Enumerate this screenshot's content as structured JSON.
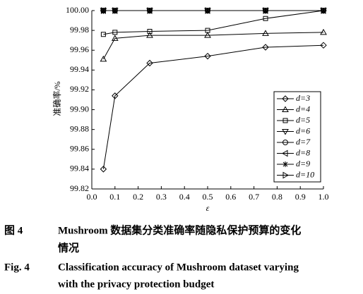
{
  "chart_data": {
    "type": "line",
    "x_label": "ε",
    "y_label": "准确率/%",
    "x": [
      0.05,
      0.1,
      0.25,
      0.5,
      0.75,
      1.0
    ],
    "series": [
      {
        "name": "d=3",
        "marker": "diamond",
        "color": "#000",
        "values": [
          99.84,
          99.914,
          99.947,
          99.954,
          99.963,
          99.965
        ]
      },
      {
        "name": "d=4",
        "marker": "triangle-up",
        "color": "#000",
        "values": [
          99.951,
          99.972,
          99.975,
          99.975,
          99.977,
          99.978
        ]
      },
      {
        "name": "d=5",
        "marker": "square",
        "color": "#000",
        "values": [
          99.976,
          99.978,
          99.979,
          99.98,
          99.992,
          100.0
        ]
      },
      {
        "name": "d=6",
        "marker": "triangle-down",
        "color": "#000",
        "values": [
          100.0,
          100.0,
          100.0,
          100.0,
          100.0,
          100.0
        ]
      },
      {
        "name": "d=7",
        "marker": "circle",
        "color": "#000",
        "values": [
          100.0,
          100.0,
          100.0,
          100.0,
          100.0,
          100.0
        ]
      },
      {
        "name": "d=8",
        "marker": "triangle-left",
        "color": "#000",
        "values": [
          100.0,
          100.0,
          100.0,
          100.0,
          100.0,
          100.0
        ]
      },
      {
        "name": "d=9",
        "marker": "asterisk",
        "color": "#000",
        "values": [
          100.0,
          100.0,
          100.0,
          100.0,
          100.0,
          100.0
        ]
      },
      {
        "name": "d=10",
        "marker": "triangle-right",
        "color": "#000",
        "values": [
          100.0,
          100.0,
          100.0,
          100.0,
          100.0,
          100.0
        ]
      }
    ],
    "xlim": [
      0,
      1
    ],
    "xticks": [
      {
        "value": 0,
        "label": "0.0"
      },
      0.1,
      0.2,
      0.3,
      0.4,
      0.5,
      0.6,
      0.7,
      0.8,
      0.9,
      {
        "value": 1,
        "label": "1.0"
      }
    ],
    "ylim": [
      99.82,
      100
    ],
    "yticks": [
      99.82,
      99.84,
      99.86,
      99.88,
      {
        "value": 99.9,
        "label": "99.90"
      },
      99.92,
      99.94,
      99.96,
      99.98,
      {
        "value": 100,
        "label": "100.00"
      }
    ],
    "legend": "right"
  },
  "caption": {
    "label_cn": "图 4",
    "lines_cn": [
      "Mushroom 数据集分类准确率随隐私保护预算的变化",
      "情况"
    ],
    "label_en": "Fig. 4",
    "lines_en": [
      "Classification accuracy of Mushroom dataset varying",
      "with the privacy protection budget"
    ]
  }
}
